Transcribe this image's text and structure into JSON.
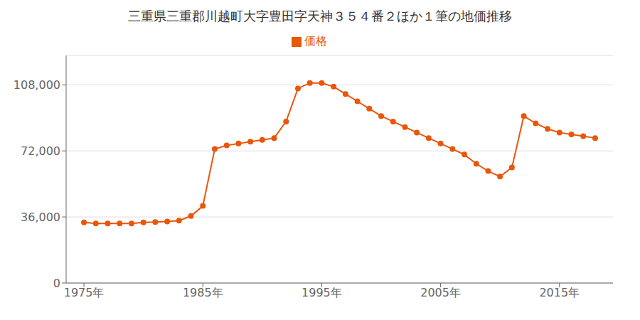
{
  "chart_data": {
    "type": "line",
    "title": "三重県三重郡川越町大字豊田字天神３５４番２ほか１筆の地価推移",
    "x": [
      1975,
      1976,
      1977,
      1978,
      1979,
      1980,
      1981,
      1982,
      1983,
      1984,
      1985,
      1986,
      1987,
      1988,
      1989,
      1990,
      1991,
      1992,
      1993,
      1994,
      1995,
      1996,
      1997,
      1998,
      1999,
      2000,
      2001,
      2002,
      2003,
      2004,
      2005,
      2006,
      2007,
      2008,
      2009,
      2010,
      2011,
      2012,
      2013,
      2014,
      2015,
      2016,
      2017,
      2018
    ],
    "series": [
      {
        "name": "価格",
        "color": "#E8570A",
        "marker": "circle",
        "values": [
          33000,
          32500,
          32500,
          32500,
          32500,
          33000,
          33200,
          33500,
          34000,
          36500,
          42000,
          73000,
          75000,
          76000,
          77000,
          78000,
          79000,
          88000,
          106000,
          109000,
          109000,
          107000,
          103000,
          99000,
          95000,
          91000,
          88000,
          85000,
          82000,
          79000,
          76000,
          73000,
          70000,
          65000,
          61000,
          58000,
          63000,
          91000,
          87000,
          84000,
          82000,
          81000,
          80000,
          79000
        ]
      }
    ],
    "xlim": [
      1973.5,
      2019.5
    ],
    "xticks": [
      {
        "value": 1975,
        "label": "1975年"
      },
      {
        "value": 1985,
        "label": "1985年"
      },
      {
        "value": 1995,
        "label": "1995年"
      },
      {
        "value": 2005,
        "label": "2005年"
      },
      {
        "value": 2015,
        "label": "2015年"
      }
    ],
    "ylim": [
      0,
      124000
    ],
    "yticks": [
      0,
      {
        "value": 36000,
        "label": "36,000"
      },
      {
        "value": 72000,
        "label": "72,000"
      },
      {
        "value": 108000,
        "label": "108,000"
      }
    ],
    "grid": true,
    "legend": "top"
  }
}
